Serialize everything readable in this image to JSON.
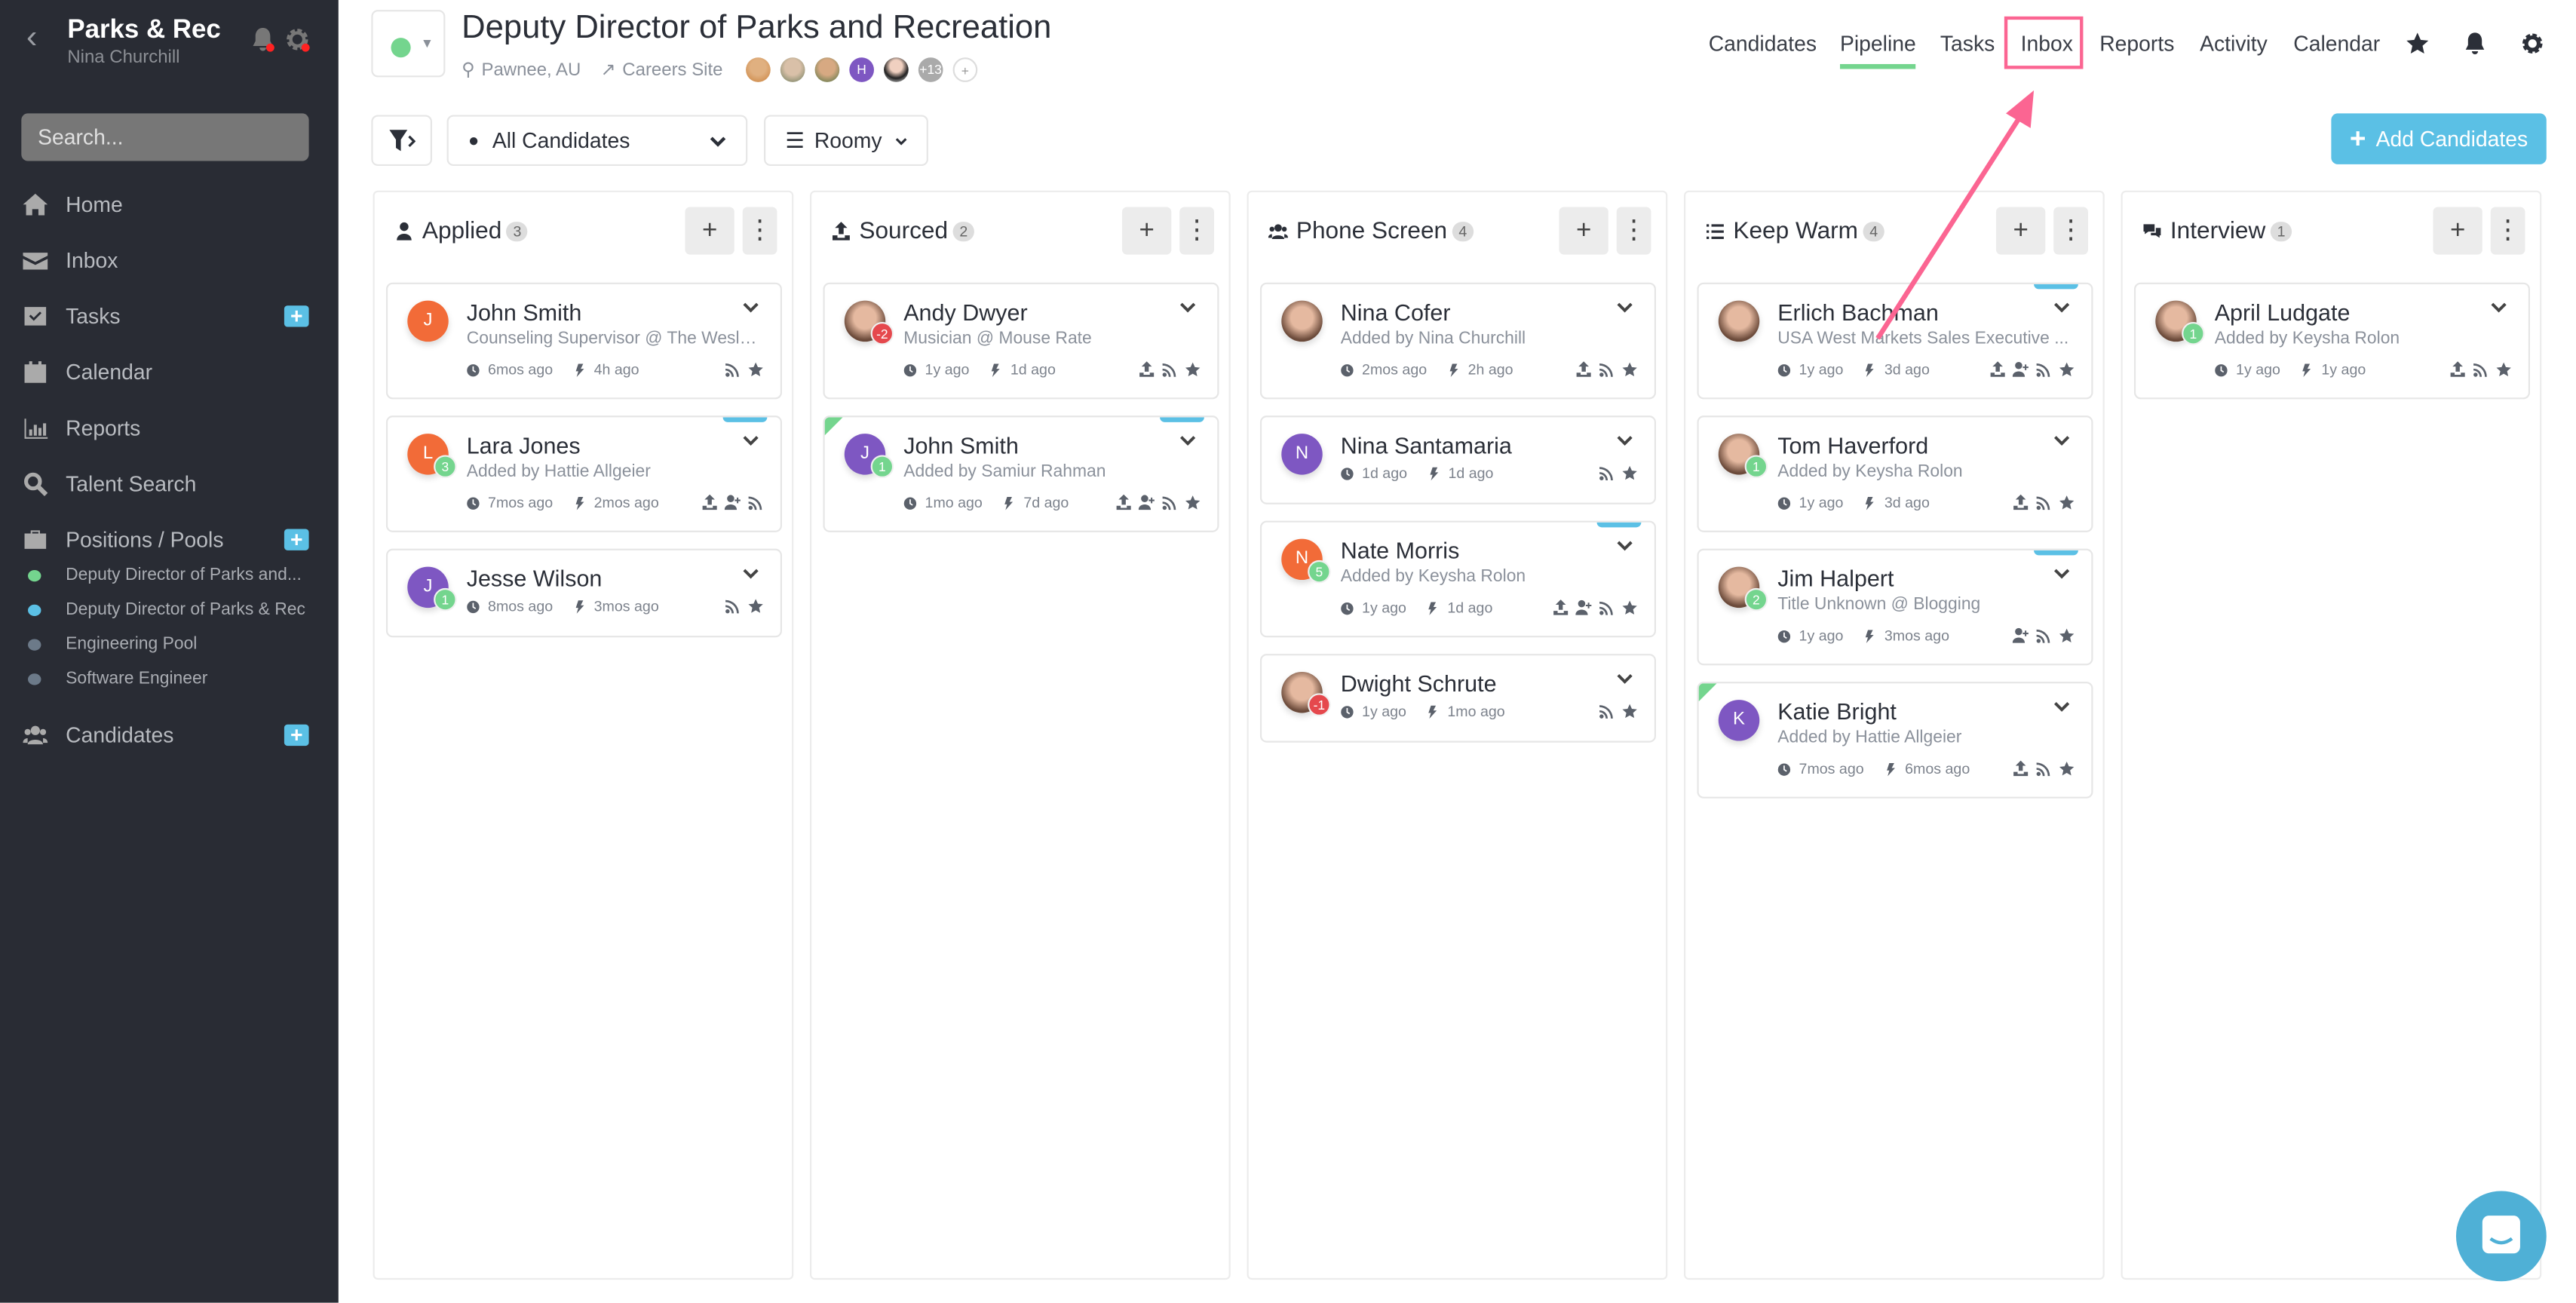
{
  "sidebar": {
    "org": "Parks & Rec",
    "user": "Nina Churchill",
    "search_placeholder": "Search...",
    "items": [
      {
        "label": "Home",
        "icon": "home-icon"
      },
      {
        "label": "Inbox",
        "icon": "envelope-icon"
      },
      {
        "label": "Tasks",
        "icon": "check-square-icon",
        "plus": true
      },
      {
        "label": "Calendar",
        "icon": "calendar-icon"
      },
      {
        "label": "Reports",
        "icon": "bar-chart-icon"
      },
      {
        "label": "Talent Search",
        "icon": "search-icon"
      },
      {
        "label": "Positions / Pools",
        "icon": "briefcase-icon",
        "plus": true
      }
    ],
    "positions": [
      {
        "label": "Deputy Director of Parks and...",
        "color": "#74d58e"
      },
      {
        "label": "Deputy Director of Parks & Rec",
        "color": "#5bc0e5"
      },
      {
        "label": "Engineering Pool",
        "color": "#6c7a89"
      },
      {
        "label": "Software Engineer",
        "color": "#6c7a89"
      }
    ],
    "candidates": {
      "label": "Candidates",
      "icon": "users-icon"
    }
  },
  "header": {
    "title": "Deputy Director of Parks and Recreation",
    "location": "Pawnee, AU",
    "careers": "Careers Site",
    "team_more": "+13",
    "team_letter": "H",
    "status_color": "#74d58e",
    "tabs": [
      "Candidates",
      "Pipeline",
      "Tasks",
      "Inbox",
      "Reports",
      "Activity",
      "Calendar"
    ],
    "active_tab": "Pipeline",
    "highlighted_tab": "Inbox"
  },
  "toolbar": {
    "filter": "All Candidates",
    "view": "Roomy",
    "add": "Add Candidates"
  },
  "columns": [
    {
      "title": "Applied",
      "count": "3",
      "icon": "user",
      "cards": [
        {
          "name": "John Smith",
          "sub": "Counseling Supervisor @ The Wesle...",
          "letter": "J",
          "color": "#f26b38",
          "created": "6mos ago",
          "activity": "4h ago",
          "icons": [
            "rss",
            "star"
          ]
        },
        {
          "name": "Lara Jones",
          "sub": "Added by Hattie Allgeier",
          "letter": "L",
          "color": "#f26b38",
          "badge": "3",
          "created": "7mos ago",
          "activity": "2mos ago",
          "icons": [
            "upload",
            "user-plus",
            "rss"
          ],
          "tag": true
        },
        {
          "name": "Jesse Wilson",
          "letter": "J",
          "color": "#7e57c2",
          "badge": "1",
          "created": "8mos ago",
          "activity": "3mos ago",
          "icons": [
            "rss",
            "star"
          ]
        }
      ]
    },
    {
      "title": "Sourced",
      "count": "2",
      "icon": "upload",
      "cards": [
        {
          "name": "Andy Dwyer",
          "sub": "Musician @ Mouse Rate",
          "photo": true,
          "badge": "-2",
          "neg": true,
          "created": "1y ago",
          "activity": "1d ago",
          "icons": [
            "upload",
            "rss",
            "star"
          ]
        },
        {
          "name": "John Smith",
          "sub": "Added by Samiur Rahman",
          "letter": "J",
          "color": "#7e57c2",
          "badge": "1",
          "created": "1mo ago",
          "activity": "7d ago",
          "icons": [
            "upload",
            "user-plus",
            "rss",
            "star"
          ],
          "tag": true,
          "corner": true
        }
      ]
    },
    {
      "title": "Phone Screen",
      "count": "4",
      "icon": "users",
      "cards": [
        {
          "name": "Nina Cofer",
          "sub": "Added by Nina Churchill",
          "photo": true,
          "created": "2mos ago",
          "activity": "2h ago",
          "icons": [
            "upload",
            "rss",
            "star"
          ]
        },
        {
          "name": "Nina Santamaria",
          "letter": "N",
          "color": "#7e57c2",
          "created": "1d ago",
          "activity": "1d ago",
          "icons": [
            "rss",
            "star"
          ]
        },
        {
          "name": "Nate Morris",
          "sub": "Added by Keysha Rolon",
          "letter": "N",
          "color": "#f26b38",
          "badge": "5",
          "created": "1y ago",
          "activity": "1d ago",
          "icons": [
            "upload",
            "user-plus",
            "rss",
            "star"
          ],
          "tag": true
        },
        {
          "name": "Dwight Schrute",
          "photo": true,
          "badge": "-1",
          "neg": true,
          "created": "1y ago",
          "activity": "1mo ago",
          "icons": [
            "rss",
            "star"
          ]
        }
      ]
    },
    {
      "title": "Keep Warm",
      "count": "4",
      "icon": "list",
      "cards": [
        {
          "name": "Erlich Bachman",
          "sub": "USA West Markets Sales Executive ...",
          "photo": true,
          "created": "1y ago",
          "activity": "3d ago",
          "icons": [
            "upload",
            "user-plus",
            "rss",
            "star"
          ],
          "tag": true
        },
        {
          "name": "Tom Haverford",
          "sub": "Added by Keysha Rolon",
          "photo": true,
          "badge": "1",
          "created": "1y ago",
          "activity": "3d ago",
          "icons": [
            "upload",
            "rss",
            "star"
          ]
        },
        {
          "name": "Jim Halpert",
          "sub": "Title Unknown @ Blogging",
          "photo": true,
          "badge": "2",
          "created": "1y ago",
          "activity": "3mos ago",
          "icons": [
            "user-plus",
            "rss",
            "star"
          ],
          "tag": true
        },
        {
          "name": "Katie Bright",
          "sub": "Added by Hattie Allgeier",
          "letter": "K",
          "color": "#7e57c2",
          "created": "7mos ago",
          "activity": "6mos ago",
          "icons": [
            "upload",
            "rss",
            "star"
          ],
          "corner": true
        }
      ]
    },
    {
      "title": "Interview",
      "count": "1",
      "icon": "comments",
      "cards": [
        {
          "name": "April Ludgate",
          "sub": "Added by Keysha Rolon",
          "photo": true,
          "badge": "1",
          "created": "1y ago",
          "activity": "1y ago",
          "icons": [
            "upload",
            "rss",
            "star"
          ]
        }
      ]
    }
  ],
  "colors": {
    "accent": "#5bc0e5",
    "success": "#74d58e",
    "danger": "#e5484d",
    "annotation": "#fb6592"
  }
}
